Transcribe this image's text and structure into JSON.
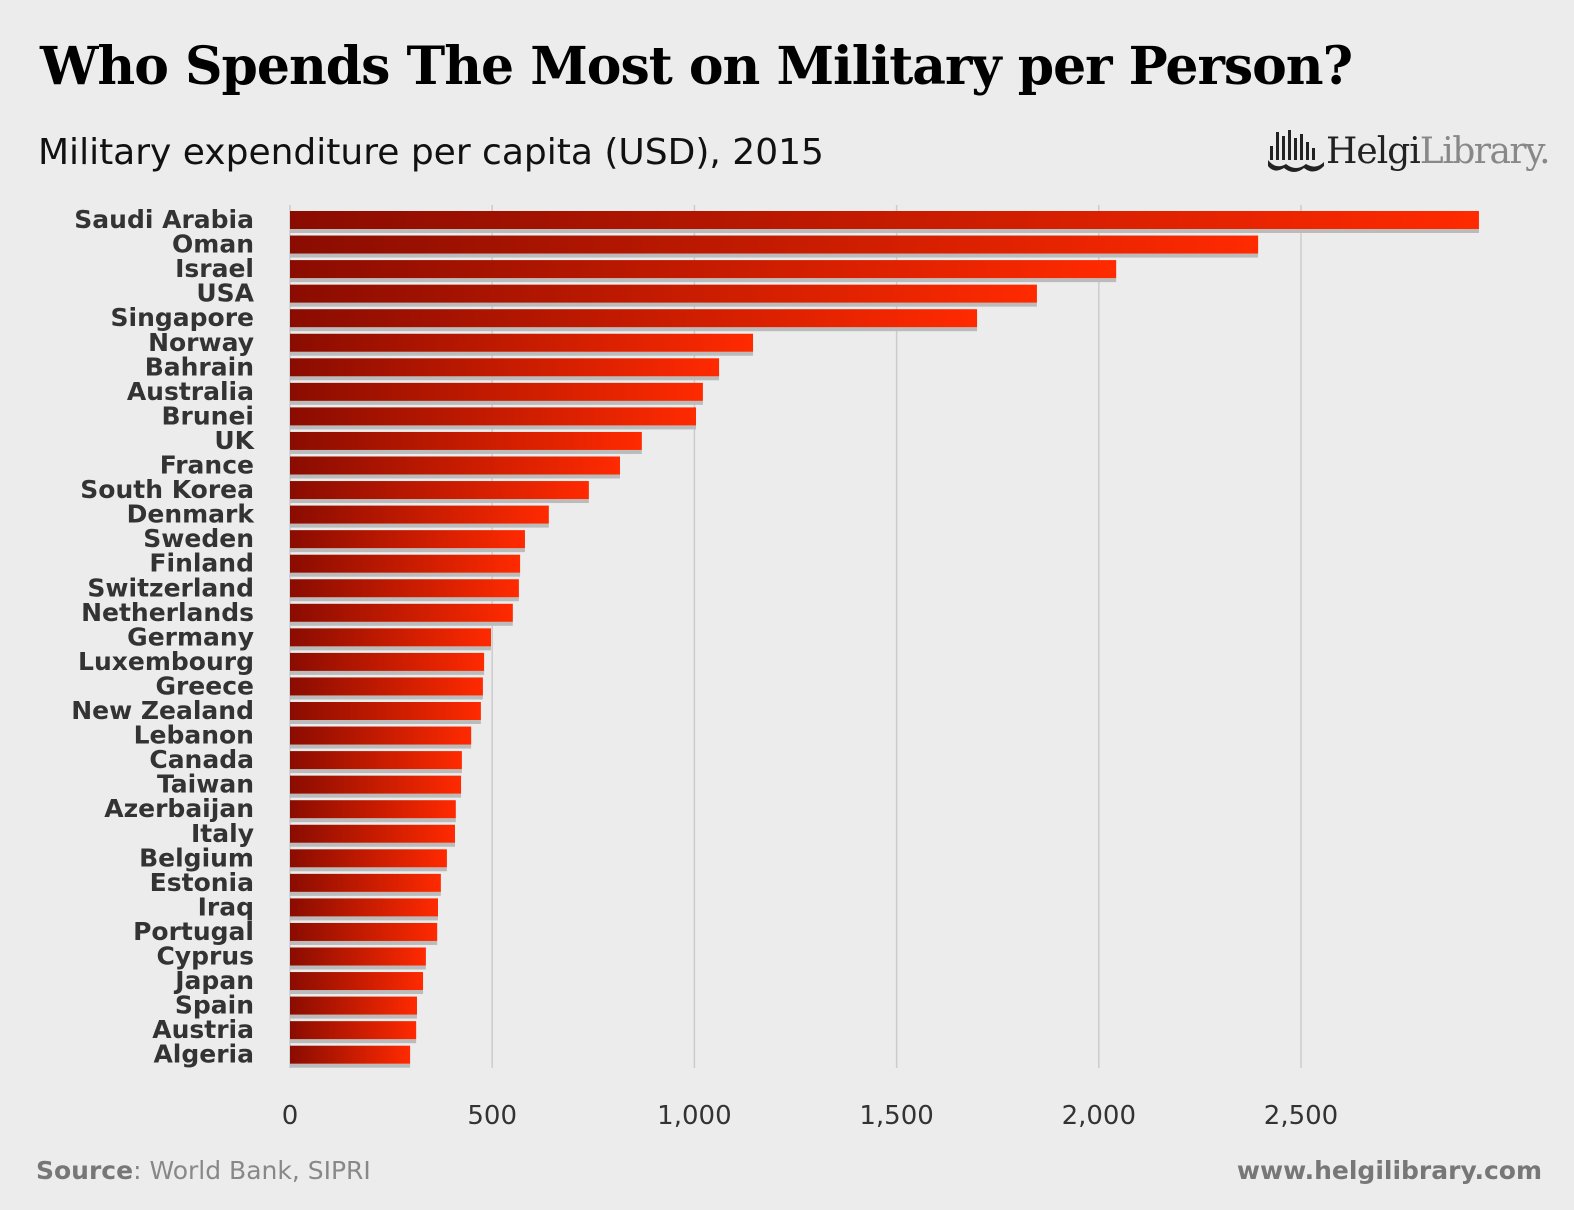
{
  "title": "Who Spends The Most on Military per Person?",
  "logo": {
    "brand_bold": "Helgi",
    "brand_light": "Library."
  },
  "footer": {
    "source_label": "Source",
    "source_text": ": World Bank, SIPRI",
    "url": "www.helgilibrary.com"
  },
  "colors": {
    "bar_dark": "#8a0c00",
    "bar_light": "#ff2a00",
    "background": "#ececec",
    "grid": "#cccccc"
  },
  "chart_data": {
    "type": "bar",
    "orientation": "horizontal",
    "title": "Military expenditure per capita (USD), 2015",
    "xlim": [
      0,
      2950
    ],
    "ticks": [
      0,
      500,
      1000,
      1500,
      2000,
      2500
    ],
    "tick_labels": [
      "0",
      "500",
      "1,000",
      "1,500",
      "2,000",
      "2,500"
    ],
    "grid": true,
    "categories": [
      "Saudi Arabia",
      "Oman",
      "Israel",
      "USA",
      "Singapore",
      "Norway",
      "Bahrain",
      "Australia",
      "Brunei",
      "UK",
      "France",
      "South Korea",
      "Denmark",
      "Sweden",
      "Finland",
      "Switzerland",
      "Netherlands",
      "Germany",
      "Luxembourg",
      "Greece",
      "New Zealand",
      "Lebanon",
      "Canada",
      "Taiwan",
      "Azerbaijan",
      "Italy",
      "Belgium",
      "Estonia",
      "Iraq",
      "Portugal",
      "Cyprus",
      "Japan",
      "Spain",
      "Austria",
      "Algeria"
    ],
    "values": [
      2940,
      2394,
      2043,
      1847,
      1699,
      1145,
      1061,
      1021,
      1004,
      870,
      816,
      739,
      640,
      581,
      569,
      566,
      551,
      497,
      480,
      477,
      472,
      448,
      425,
      423,
      410,
      408,
      388,
      373,
      366,
      364,
      336,
      329,
      314,
      312,
      297
    ]
  }
}
